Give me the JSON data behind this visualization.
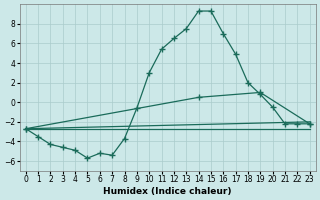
{
  "xlabel": "Humidex (Indice chaleur)",
  "bg_color": "#cce8e8",
  "line_color": "#1a6b5a",
  "grid_color": "#aacccc",
  "xlim": [
    -0.5,
    23.5
  ],
  "ylim": [
    -7,
    10
  ],
  "yticks": [
    -6,
    -4,
    -2,
    0,
    2,
    4,
    6,
    8
  ],
  "xticks": [
    0,
    1,
    2,
    3,
    4,
    5,
    6,
    7,
    8,
    9,
    10,
    11,
    12,
    13,
    14,
    15,
    16,
    17,
    18,
    19,
    20,
    21,
    22,
    23
  ],
  "line1_x": [
    0,
    1,
    2,
    3,
    4,
    5,
    6,
    7,
    8,
    9,
    10,
    11,
    12,
    13,
    14,
    15,
    16,
    17,
    18,
    19,
    20,
    21,
    22,
    23
  ],
  "line1_y": [
    -2.7,
    -3.5,
    -4.3,
    -4.6,
    -4.9,
    -5.7,
    -5.2,
    -5.4,
    -3.7,
    -0.6,
    3.0,
    5.4,
    6.5,
    7.5,
    9.3,
    9.3,
    7.0,
    4.9,
    2.0,
    0.8,
    -0.5,
    -2.2,
    -2.2,
    -2.2
  ],
  "line2_x": [
    0,
    14,
    19,
    23
  ],
  "line2_y": [
    -2.7,
    0.5,
    1.0,
    -2.2
  ],
  "line3_x": [
    0,
    23
  ],
  "line3_y": [
    -2.7,
    -2.0
  ],
  "line4_x": [
    0,
    23
  ],
  "line4_y": [
    -2.7,
    -2.7
  ]
}
